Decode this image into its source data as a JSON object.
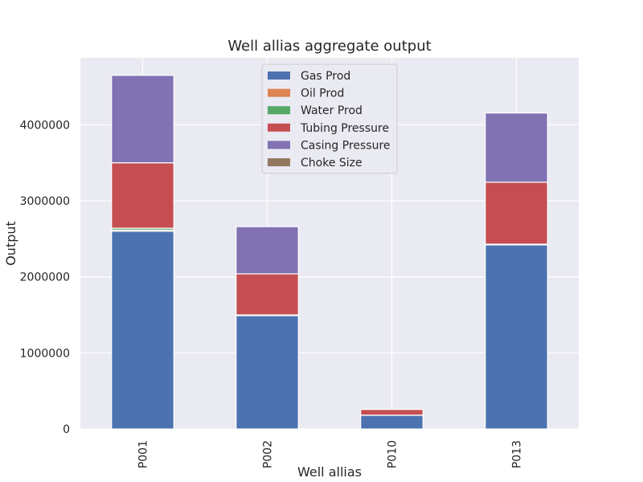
{
  "chart_data": {
    "type": "bar",
    "stacked": true,
    "title": "Well allias aggregate output",
    "xlabel": "Well allias",
    "ylabel": "Output",
    "categories": [
      "P001",
      "P002",
      "P010",
      "P013"
    ],
    "ylim": [
      0,
      4880000
    ],
    "yticks": [
      0,
      1000000,
      2000000,
      3000000,
      4000000
    ],
    "ytick_labels": [
      "0",
      "1000000",
      "2000000",
      "3000000",
      "4000000"
    ],
    "grid": true,
    "legend_position": "top-center",
    "series": [
      {
        "name": "Gas Prod",
        "color": "#4c72b0",
        "values": [
          2600000,
          1490000,
          180000,
          2420000
        ]
      },
      {
        "name": "Oil Prod",
        "color": "#dd8452",
        "values": [
          15000,
          5000,
          1000,
          5000
        ]
      },
      {
        "name": "Water Prod",
        "color": "#55a868",
        "values": [
          25000,
          5000,
          1000,
          5000
        ]
      },
      {
        "name": "Tubing Pressure",
        "color": "#c44e52",
        "values": [
          860000,
          540000,
          75000,
          815000
        ]
      },
      {
        "name": "Casing Pressure",
        "color": "#8172b3",
        "values": [
          1150000,
          620000,
          0,
          910000
        ]
      },
      {
        "name": "Choke Size",
        "color": "#937860",
        "values": [
          0,
          0,
          0,
          0
        ]
      }
    ]
  }
}
